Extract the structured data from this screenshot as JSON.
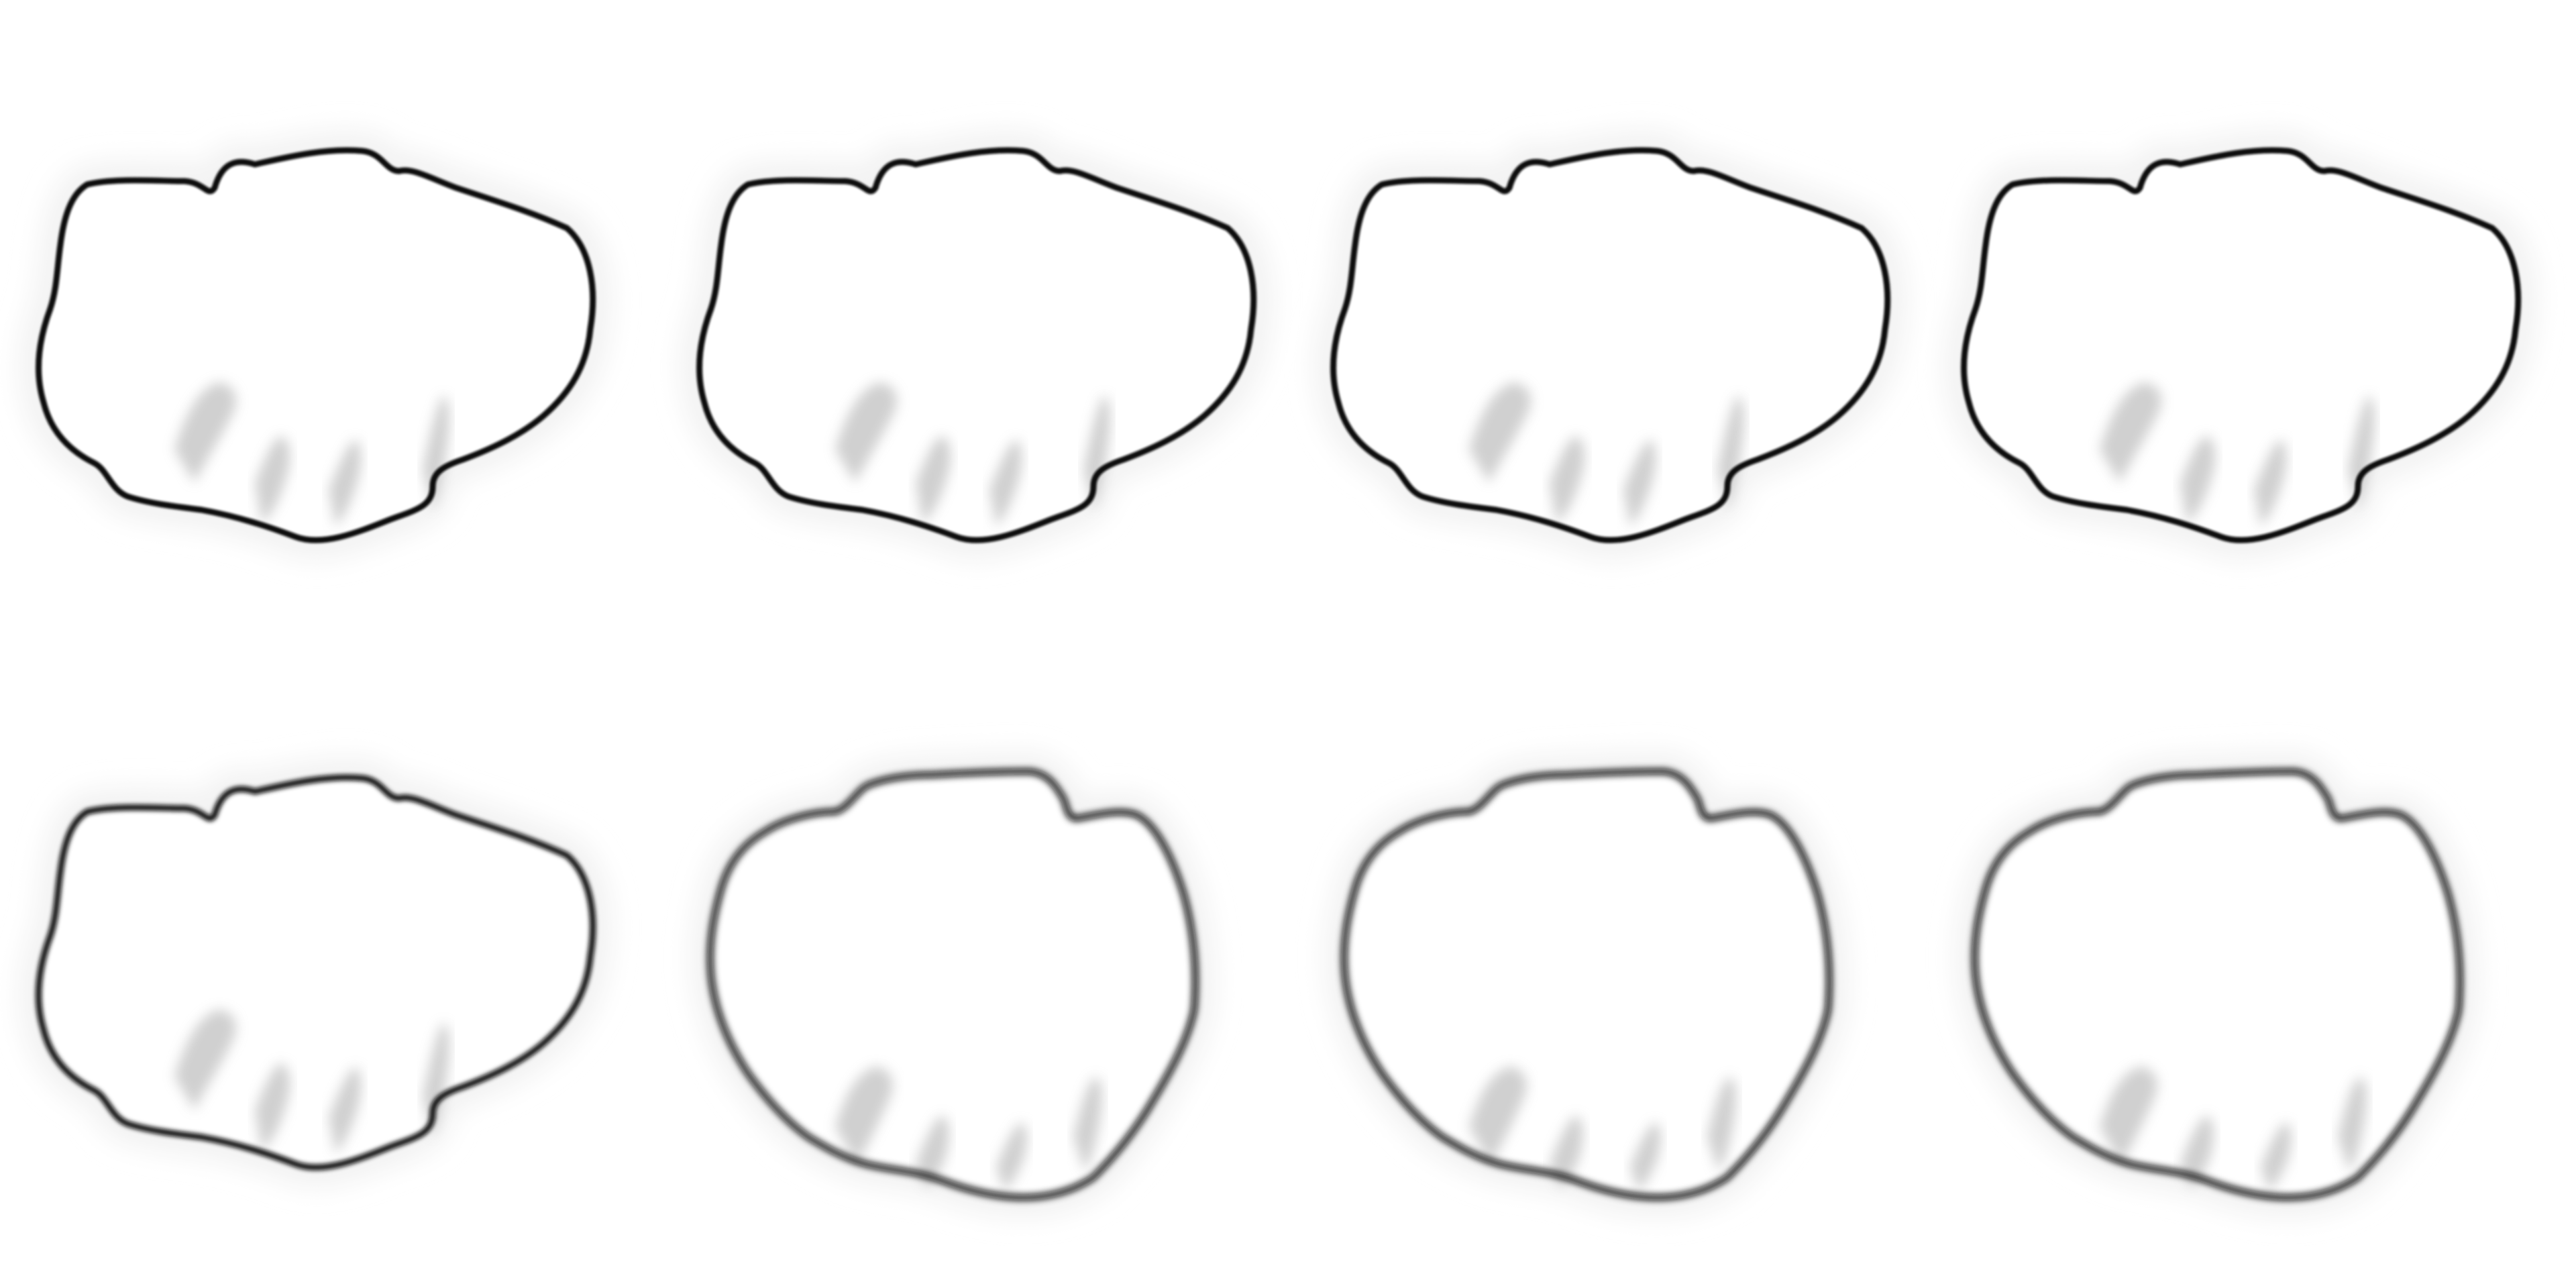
{
  "figure": {
    "background_color": "#ffffff",
    "outline_color": "#111111",
    "fold_shade_color": "#c8c8c8",
    "halo_color": "#f3f3f3"
  },
  "panels": [
    {
      "row": 1,
      "col": 1,
      "shape": "wide",
      "blur": "sharp"
    },
    {
      "row": 1,
      "col": 2,
      "shape": "wide",
      "blur": "sharp"
    },
    {
      "row": 1,
      "col": 3,
      "shape": "wide",
      "blur": "sharp"
    },
    {
      "row": 1,
      "col": 4,
      "shape": "wide",
      "blur": "sharp"
    },
    {
      "row": 2,
      "col": 1,
      "shape": "wide",
      "blur": "slight"
    },
    {
      "row": 2,
      "col": 2,
      "shape": "tall",
      "blur": "soft"
    },
    {
      "row": 2,
      "col": 3,
      "shape": "tall",
      "blur": "soft"
    },
    {
      "row": 2,
      "col": 4,
      "shape": "tall",
      "blur": "soft"
    }
  ]
}
